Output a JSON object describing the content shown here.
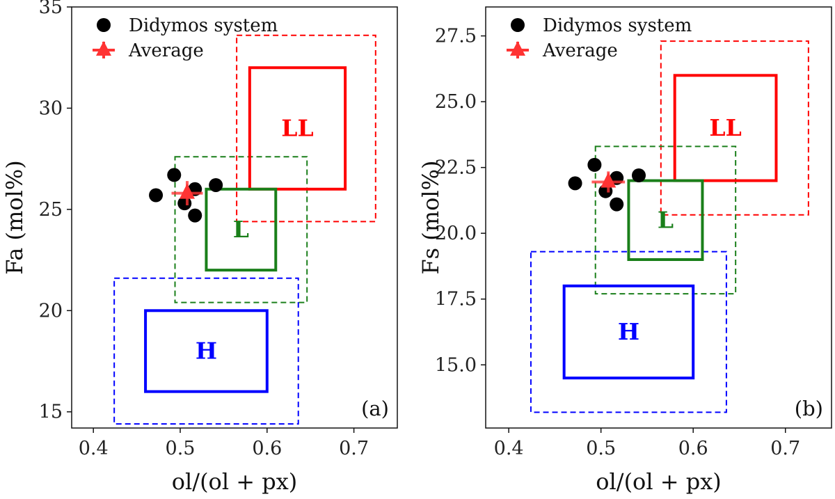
{
  "chart_data": [
    {
      "type": "scatter",
      "panel_label": "(a)",
      "xlabel": "ol/(ol + px)",
      "ylabel": "Fa (mol%)",
      "xlim": [
        0.375,
        0.75
      ],
      "ylim": [
        14.2,
        35.0
      ],
      "xticks": [
        0.4,
        0.5,
        0.6,
        0.7
      ],
      "xtick_labels": [
        "0.4",
        "0.5",
        "0.6",
        "0.7"
      ],
      "yticks": [
        15,
        20,
        25,
        30,
        35
      ],
      "ytick_labels": [
        "15",
        "20",
        "25",
        "30",
        "35"
      ],
      "legend_position": "top-left",
      "legend": [
        {
          "label": "Didymos system",
          "marker": "circle",
          "color": "#000000"
        },
        {
          "label": "Average",
          "marker": "triangle",
          "color": "#ff3333"
        }
      ],
      "points": [
        {
          "x": 0.472,
          "y": 25.7
        },
        {
          "x": 0.493,
          "y": 26.7
        },
        {
          "x": 0.505,
          "y": 25.3
        },
        {
          "x": 0.517,
          "y": 26.0
        },
        {
          "x": 0.517,
          "y": 24.7
        },
        {
          "x": 0.541,
          "y": 26.2
        }
      ],
      "average": {
        "x": 0.508,
        "y": 25.8,
        "xerr": 0.018,
        "yerr": 0.6
      },
      "regions": [
        {
          "label": "LL",
          "color": "#ff0000",
          "style": "solid",
          "x": [
            0.58,
            0.69
          ],
          "y": [
            26.0,
            32.0
          ]
        },
        {
          "label": "",
          "color": "#ff0000",
          "style": "dashed",
          "x": [
            0.565,
            0.725
          ],
          "y": [
            24.4,
            33.6
          ]
        },
        {
          "label": "L",
          "color": "#1a7f1a",
          "style": "solid",
          "x": [
            0.53,
            0.61
          ],
          "y": [
            22.0,
            26.0
          ]
        },
        {
          "label": "",
          "color": "#1a7f1a",
          "style": "dashed",
          "x": [
            0.494,
            0.646
          ],
          "y": [
            20.4,
            27.6
          ]
        },
        {
          "label": "H",
          "color": "#0000ff",
          "style": "solid",
          "x": [
            0.46,
            0.6
          ],
          "y": [
            16.0,
            20.0
          ]
        },
        {
          "label": "",
          "color": "#0000ff",
          "style": "dashed",
          "x": [
            0.424,
            0.636
          ],
          "y": [
            14.4,
            21.6
          ]
        }
      ]
    },
    {
      "type": "scatter",
      "panel_label": "(b)",
      "xlabel": "ol/(ol + px)",
      "ylabel": "Fs (mol%)",
      "xlim": [
        0.375,
        0.75
      ],
      "ylim": [
        12.6,
        28.6
      ],
      "xticks": [
        0.4,
        0.5,
        0.6,
        0.7
      ],
      "xtick_labels": [
        "0.4",
        "0.5",
        "0.6",
        "0.7"
      ],
      "yticks": [
        15.0,
        17.5,
        20.0,
        22.5,
        25.0,
        27.5
      ],
      "ytick_labels": [
        "15.0",
        "17.5",
        "20.0",
        "22.5",
        "25.0",
        "27.5"
      ],
      "legend_position": "top-left",
      "legend": [
        {
          "label": "Didymos system",
          "marker": "circle",
          "color": "#000000"
        },
        {
          "label": "Average",
          "marker": "triangle",
          "color": "#ff3333"
        }
      ],
      "points": [
        {
          "x": 0.472,
          "y": 21.9
        },
        {
          "x": 0.493,
          "y": 22.6
        },
        {
          "x": 0.505,
          "y": 21.6
        },
        {
          "x": 0.517,
          "y": 22.1
        },
        {
          "x": 0.517,
          "y": 21.1
        },
        {
          "x": 0.541,
          "y": 22.2
        }
      ],
      "average": {
        "x": 0.508,
        "y": 21.95,
        "xerr": 0.018,
        "yerr": 0.4
      },
      "regions": [
        {
          "label": "LL",
          "color": "#ff0000",
          "style": "solid",
          "x": [
            0.58,
            0.69
          ],
          "y": [
            22.0,
            26.0
          ]
        },
        {
          "label": "",
          "color": "#ff0000",
          "style": "dashed",
          "x": [
            0.565,
            0.725
          ],
          "y": [
            20.7,
            27.3
          ]
        },
        {
          "label": "L",
          "color": "#1a7f1a",
          "style": "solid",
          "x": [
            0.53,
            0.61
          ],
          "y": [
            19.0,
            22.0
          ]
        },
        {
          "label": "",
          "color": "#1a7f1a",
          "style": "dashed",
          "x": [
            0.494,
            0.646
          ],
          "y": [
            17.7,
            23.3
          ]
        },
        {
          "label": "H",
          "color": "#0000ff",
          "style": "solid",
          "x": [
            0.46,
            0.6
          ],
          "y": [
            14.5,
            18.0
          ]
        },
        {
          "label": "",
          "color": "#0000ff",
          "style": "dashed",
          "x": [
            0.424,
            0.636
          ],
          "y": [
            13.2,
            19.3
          ]
        }
      ]
    }
  ]
}
